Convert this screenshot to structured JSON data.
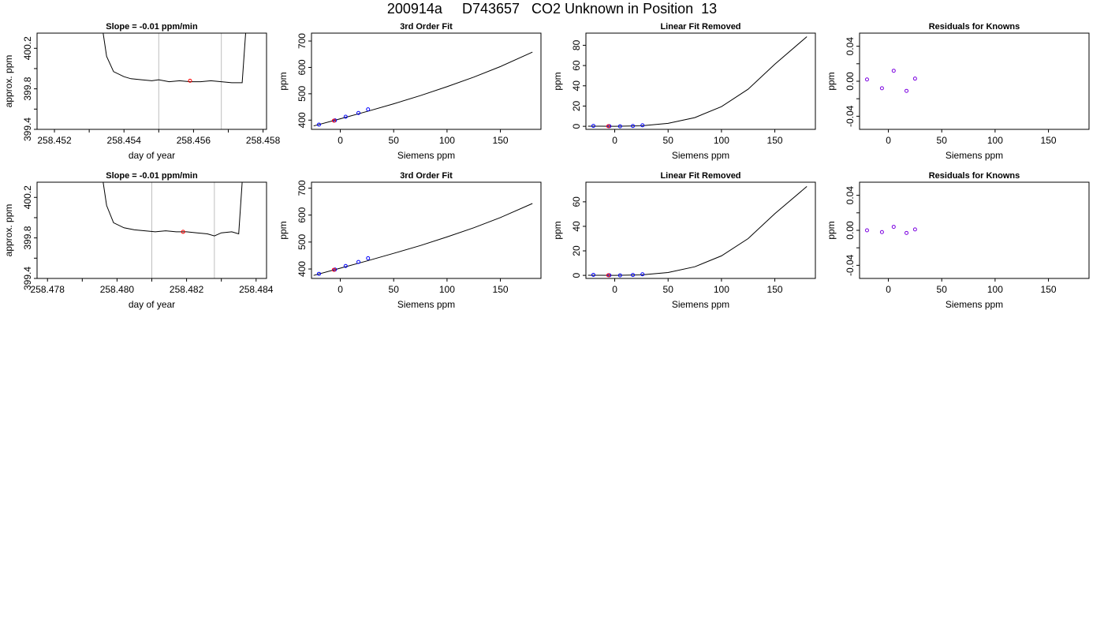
{
  "figure_title": "200914a     D743657   CO2 Unknown in Position  13",
  "colors": {
    "line": "#000000",
    "known_point": "#0000ff",
    "unknown_point": "#ff0000",
    "residual_point": "#7b00e0",
    "vertical_marker": "#bebebe"
  },
  "chart_data": [
    {
      "type": "line",
      "row": 1,
      "col": 1,
      "title": "Slope =  -0.01  ppm/min",
      "xlabel": "day of year",
      "ylabel": "approx. ppm",
      "xlim": [
        258.4515,
        258.4581
      ],
      "ylim": [
        399.4,
        400.35
      ],
      "xticks": [
        258.452,
        258.453,
        258.454,
        258.455,
        258.456,
        258.457,
        258.458
      ],
      "xtick_labels": [
        "258.452",
        "",
        "258.454",
        "",
        "258.456",
        "",
        "258.458"
      ],
      "yticks": [
        399.4,
        399.6,
        399.8,
        400.0,
        400.2
      ],
      "ytick_labels": [
        "399.4",
        "",
        "399.8",
        "",
        "400.2"
      ],
      "vlines": [
        258.455,
        258.4568
      ],
      "series": [
        {
          "x": [
            258.4534,
            258.4535,
            258.4537,
            258.454,
            258.4542,
            258.4545,
            258.4548,
            258.455,
            258.4553,
            258.4556,
            258.4559,
            258.4562,
            258.4565,
            258.4568,
            258.4571,
            258.4574,
            258.4575
          ],
          "y": [
            400.35,
            400.12,
            399.97,
            399.92,
            399.9,
            399.89,
            399.88,
            399.89,
            399.87,
            399.88,
            399.87,
            399.87,
            399.88,
            399.87,
            399.86,
            399.86,
            400.35
          ]
        }
      ],
      "points": [
        {
          "x": 258.4559,
          "y": 399.88,
          "kind": "unknown"
        }
      ]
    },
    {
      "type": "line",
      "row": 1,
      "col": 2,
      "title": "3rd Order Fit",
      "xlabel": "Siemens ppm",
      "ylabel": "ppm",
      "xlim": [
        -27,
        188
      ],
      "ylim": [
        365,
        730
      ],
      "xticks": [
        0,
        50,
        100,
        150
      ],
      "xtick_labels": [
        "0",
        "50",
        "100",
        "150"
      ],
      "yticks": [
        400,
        500,
        600,
        700
      ],
      "ytick_labels": [
        "400",
        "500",
        "600",
        "700"
      ],
      "series": [
        {
          "x": [
            -25,
            0,
            25,
            50,
            75,
            100,
            125,
            150,
            180
          ],
          "y": [
            378,
            405,
            433,
            462,
            493,
            527,
            563,
            603,
            658
          ]
        }
      ],
      "points": [
        {
          "x": -20,
          "y": 383,
          "kind": "known"
        },
        {
          "x": -5,
          "y": 399,
          "kind": "known"
        },
        {
          "x": 5,
          "y": 413,
          "kind": "known"
        },
        {
          "x": 17,
          "y": 427,
          "kind": "known"
        },
        {
          "x": 26,
          "y": 441,
          "kind": "known"
        },
        {
          "x": -6,
          "y": 398,
          "kind": "unknown"
        }
      ]
    },
    {
      "type": "line",
      "row": 1,
      "col": 3,
      "title": "Linear Fit Removed",
      "xlabel": "Siemens ppm",
      "ylabel": "ppm",
      "xlim": [
        -27,
        188
      ],
      "ylim": [
        -3,
        92
      ],
      "xticks": [
        0,
        50,
        100,
        150
      ],
      "xtick_labels": [
        "0",
        "50",
        "100",
        "150"
      ],
      "yticks": [
        0,
        20,
        40,
        60,
        80
      ],
      "ytick_labels": [
        "0",
        "20",
        "40",
        "60",
        "80"
      ],
      "series": [
        {
          "x": [
            -25,
            0,
            25,
            50,
            75,
            100,
            125,
            150,
            180
          ],
          "y": [
            0.1,
            0.0,
            0.5,
            2.9,
            8.6,
            19.4,
            36.6,
            61.3,
            88.5
          ]
        }
      ],
      "points": [
        {
          "x": -20,
          "y": 0.4,
          "kind": "known"
        },
        {
          "x": -5,
          "y": 0.1,
          "kind": "known"
        },
        {
          "x": 5,
          "y": 0.0,
          "kind": "known"
        },
        {
          "x": 17,
          "y": 0.3,
          "kind": "known"
        },
        {
          "x": 26,
          "y": 1.0,
          "kind": "known"
        },
        {
          "x": -6,
          "y": 0.1,
          "kind": "unknown"
        }
      ]
    },
    {
      "type": "scatter",
      "row": 1,
      "col": 4,
      "title": "Residuals for Knowns",
      "xlabel": "Siemens ppm",
      "ylabel": "ppm",
      "xlim": [
        -27,
        188
      ],
      "ylim": [
        -0.055,
        0.055
      ],
      "xticks": [
        0,
        50,
        100,
        150
      ],
      "xtick_labels": [
        "0",
        "50",
        "100",
        "150"
      ],
      "yticks": [
        -0.04,
        -0.02,
        0.0,
        0.02,
        0.04
      ],
      "ytick_labels": [
        "-0.04",
        "",
        "0.00",
        "",
        "0.04"
      ],
      "points": [
        {
          "x": -20,
          "y": 0.002,
          "kind": "residual"
        },
        {
          "x": -6,
          "y": -0.008,
          "kind": "residual"
        },
        {
          "x": 5,
          "y": 0.012,
          "kind": "residual"
        },
        {
          "x": 17,
          "y": -0.011,
          "kind": "residual"
        },
        {
          "x": 25,
          "y": 0.003,
          "kind": "residual"
        }
      ]
    },
    {
      "type": "line",
      "row": 2,
      "col": 1,
      "title": "Slope =  -0.01  ppm/min",
      "xlabel": "day of year",
      "ylabel": "approx. ppm",
      "xlim": [
        258.4777,
        258.4843
      ],
      "ylim": [
        399.4,
        400.35
      ],
      "xticks": [
        258.478,
        258.479,
        258.48,
        258.481,
        258.482,
        258.483,
        258.484
      ],
      "xtick_labels": [
        "258.478",
        "",
        "258.480",
        "",
        "258.482",
        "",
        "258.484"
      ],
      "yticks": [
        399.4,
        399.6,
        399.8,
        400.0,
        400.2
      ],
      "ytick_labels": [
        "399.4",
        "",
        "399.8",
        "",
        "400.2"
      ],
      "vlines": [
        258.481,
        258.4828
      ],
      "series": [
        {
          "x": [
            258.4796,
            258.4797,
            258.4799,
            258.4802,
            258.4805,
            258.4808,
            258.4811,
            258.4814,
            258.4817,
            258.482,
            258.4823,
            258.4826,
            258.4828,
            258.483,
            258.4833,
            258.4835,
            258.4836
          ],
          "y": [
            400.35,
            400.12,
            399.95,
            399.9,
            399.88,
            399.87,
            399.86,
            399.87,
            399.86,
            399.86,
            399.85,
            399.84,
            399.82,
            399.85,
            399.86,
            399.84,
            400.35
          ]
        }
      ],
      "points": [
        {
          "x": 258.4819,
          "y": 399.86,
          "kind": "unknown"
        }
      ]
    },
    {
      "type": "line",
      "row": 2,
      "col": 2,
      "title": "3rd Order Fit",
      "xlabel": "Siemens ppm",
      "ylabel": "ppm",
      "xlim": [
        -27,
        188
      ],
      "ylim": [
        365,
        722
      ],
      "xticks": [
        0,
        50,
        100,
        150
      ],
      "xtick_labels": [
        "0",
        "50",
        "100",
        "150"
      ],
      "yticks": [
        400,
        500,
        600,
        700
      ],
      "ytick_labels": [
        "400",
        "500",
        "600",
        "700"
      ],
      "series": [
        {
          "x": [
            -25,
            0,
            25,
            50,
            75,
            100,
            125,
            150,
            180
          ],
          "y": [
            376,
            403,
            430,
            458,
            487,
            519,
            553,
            591,
            643
          ]
        }
      ],
      "points": [
        {
          "x": -20,
          "y": 382,
          "kind": "known"
        },
        {
          "x": -5,
          "y": 398,
          "kind": "known"
        },
        {
          "x": 5,
          "y": 411,
          "kind": "known"
        },
        {
          "x": 17,
          "y": 426,
          "kind": "known"
        },
        {
          "x": 26,
          "y": 440,
          "kind": "known"
        },
        {
          "x": -6,
          "y": 397,
          "kind": "unknown"
        }
      ]
    },
    {
      "type": "line",
      "row": 2,
      "col": 3,
      "title": "Linear Fit Removed",
      "xlabel": "Siemens ppm",
      "ylabel": "ppm",
      "xlim": [
        -27,
        188
      ],
      "ylim": [
        -2.5,
        76
      ],
      "xticks": [
        0,
        50,
        100,
        150
      ],
      "xtick_labels": [
        "0",
        "50",
        "100",
        "150"
      ],
      "yticks": [
        0,
        20,
        40,
        60
      ],
      "ytick_labels": [
        "0",
        "20",
        "40",
        "60"
      ],
      "series": [
        {
          "x": [
            -25,
            0,
            25,
            50,
            75,
            100,
            125,
            150,
            180
          ],
          "y": [
            0.1,
            0.0,
            0.4,
            2.3,
            7.0,
            15.9,
            30.0,
            50.3,
            72.5
          ]
        }
      ],
      "points": [
        {
          "x": -20,
          "y": 0.4,
          "kind": "known"
        },
        {
          "x": -5,
          "y": 0.1,
          "kind": "known"
        },
        {
          "x": 5,
          "y": 0.0,
          "kind": "known"
        },
        {
          "x": 17,
          "y": 0.3,
          "kind": "known"
        },
        {
          "x": 26,
          "y": 0.9,
          "kind": "known"
        },
        {
          "x": -6,
          "y": 0.1,
          "kind": "unknown"
        }
      ]
    },
    {
      "type": "scatter",
      "row": 2,
      "col": 4,
      "title": "Residuals for Knowns",
      "xlabel": "Siemens ppm",
      "ylabel": "ppm",
      "xlim": [
        -27,
        188
      ],
      "ylim": [
        -0.055,
        0.055
      ],
      "xticks": [
        0,
        50,
        100,
        150
      ],
      "xtick_labels": [
        "0",
        "50",
        "100",
        "150"
      ],
      "yticks": [
        -0.04,
        -0.02,
        0.0,
        0.02,
        0.04
      ],
      "ytick_labels": [
        "-0.04",
        "",
        "0.00",
        "",
        "0.04"
      ],
      "points": [
        {
          "x": -20,
          "y": 0.0,
          "kind": "residual"
        },
        {
          "x": -6,
          "y": -0.002,
          "kind": "residual"
        },
        {
          "x": 5,
          "y": 0.004,
          "kind": "residual"
        },
        {
          "x": 17,
          "y": -0.003,
          "kind": "residual"
        },
        {
          "x": 25,
          "y": 0.001,
          "kind": "residual"
        }
      ]
    }
  ]
}
